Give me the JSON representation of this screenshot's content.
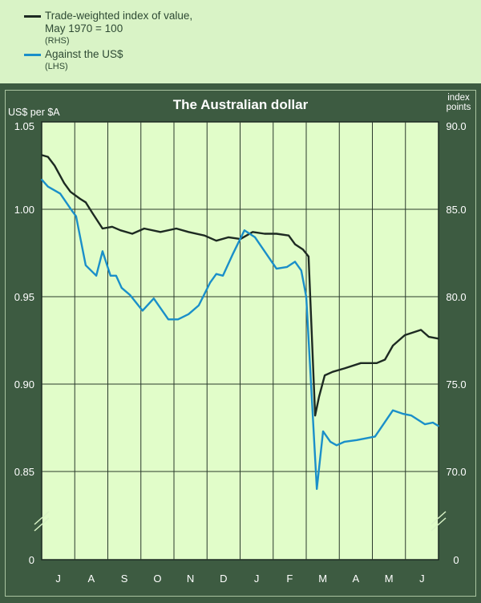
{
  "legend": {
    "items": [
      {
        "label": "Trade-weighted index of value,",
        "label2": "May 1970 = 100",
        "note": "(RHS)",
        "color": "#1d2a22"
      },
      {
        "label": "Against the US$",
        "note": "(LHS)",
        "color": "#1a8fc9"
      }
    ]
  },
  "chart_data": {
    "type": "line",
    "title": "The Australian dollar",
    "ylabel_left": "US$ per $A",
    "ylabel_right": [
      "index",
      "points"
    ],
    "x_unit": "months from start of July",
    "categories": [
      "J",
      "A",
      "S",
      "O",
      "N",
      "D",
      "J",
      "F",
      "M",
      "A",
      "M",
      "J"
    ],
    "ylim_left": [
      0.85,
      1.05
    ],
    "yticks_left": [
      "1.05",
      "1.00",
      "0.95",
      "0.90",
      "0.85",
      "0"
    ],
    "ylim_right": [
      70,
      90
    ],
    "yticks_right": [
      "90.0",
      "85.0",
      "80.0",
      "75.0",
      "70.0",
      "0"
    ],
    "axis_break": true,
    "grid": true,
    "series": [
      {
        "name": "Trade-weighted index of value, May 1970 = 100 (RHS)",
        "axis": "right",
        "color": "#1d2a22",
        "x": [
          0,
          0.19,
          0.39,
          0.68,
          0.87,
          1.16,
          1.33,
          1.53,
          1.84,
          2.13,
          2.38,
          2.74,
          3.1,
          3.59,
          4.07,
          4.44,
          4.92,
          5.28,
          5.65,
          6.01,
          6.38,
          6.74,
          7.1,
          7.47,
          7.66,
          7.9,
          8.07,
          8.27,
          8.39,
          8.56,
          8.8,
          9.16,
          9.65,
          10.13,
          10.38,
          10.62,
          10.98,
          11.47,
          11.71,
          12
        ],
        "y": [
          88.1,
          88.0,
          87.5,
          86.5,
          86.0,
          85.6,
          85.4,
          84.8,
          83.9,
          84.0,
          83.8,
          83.6,
          83.9,
          83.7,
          83.9,
          83.7,
          83.5,
          83.2,
          83.4,
          83.3,
          83.7,
          83.6,
          83.6,
          83.5,
          83.0,
          82.7,
          82.3,
          73.2,
          74.3,
          75.5,
          75.7,
          75.9,
          76.2,
          76.2,
          76.4,
          77.2,
          77.8,
          78.1,
          77.7,
          77.6
        ]
      },
      {
        "name": "Against the US$ (LHS)",
        "axis": "left",
        "color": "#1a8fc9",
        "x": [
          0,
          0.19,
          0.56,
          0.92,
          1.04,
          1.33,
          1.65,
          1.84,
          2.08,
          2.25,
          2.42,
          2.67,
          3.05,
          3.39,
          3.83,
          4.12,
          4.44,
          4.75,
          5.09,
          5.28,
          5.48,
          5.77,
          6.13,
          6.45,
          6.74,
          7.1,
          7.42,
          7.66,
          7.85,
          8.0,
          8.19,
          8.32,
          8.51,
          8.73,
          8.92,
          9.16,
          9.53,
          10.08,
          10.62,
          10.93,
          11.18,
          11.59,
          11.83,
          12
        ],
        "y": [
          1.017,
          1.013,
          1.009,
          0.999,
          0.996,
          0.968,
          0.962,
          0.976,
          0.962,
          0.962,
          0.955,
          0.951,
          0.942,
          0.949,
          0.937,
          0.937,
          0.94,
          0.945,
          0.958,
          0.963,
          0.962,
          0.974,
          0.988,
          0.984,
          0.976,
          0.966,
          0.967,
          0.97,
          0.965,
          0.95,
          0.885,
          0.84,
          0.873,
          0.867,
          0.865,
          0.867,
          0.868,
          0.87,
          0.885,
          0.883,
          0.882,
          0.877,
          0.878,
          0.876
        ]
      }
    ]
  }
}
